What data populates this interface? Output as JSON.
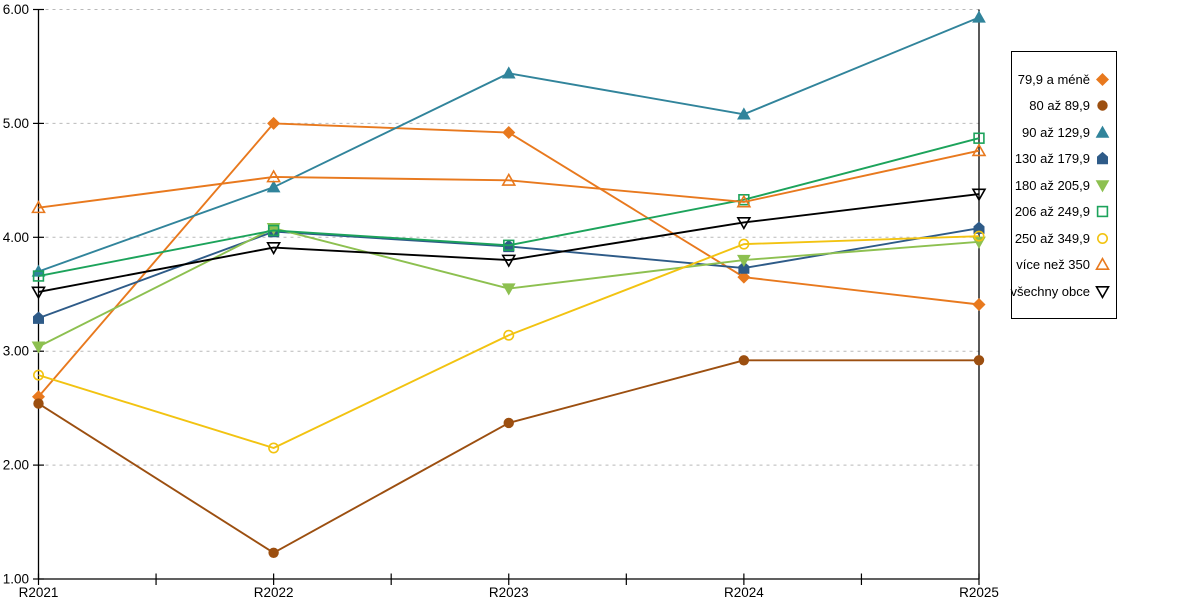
{
  "chart_data": {
    "type": "line",
    "title": "",
    "xlabel": "",
    "ylabel": "",
    "categories": [
      "R2021",
      "R2022",
      "R2023",
      "R2024",
      "R2025"
    ],
    "y_tick_labels": [
      "6.00",
      "5.00",
      "4.00",
      "3.00",
      "2.00",
      "1.00"
    ],
    "ylim": [
      1.0,
      6.0
    ],
    "grid": "horizontal dashed light-gray",
    "legend_position": "right",
    "series": [
      {
        "name": "79,9 a méně",
        "marker": "diamond",
        "fill": "solid",
        "color": "#E8791E",
        "values": [
          2.6,
          5.0,
          4.92,
          3.65,
          3.41
        ]
      },
      {
        "name": "80 až 89,9",
        "marker": "circle",
        "fill": "solid",
        "color": "#9C4F10",
        "values": [
          2.54,
          1.23,
          2.37,
          2.92,
          2.92
        ]
      },
      {
        "name": "90 až 129,9",
        "marker": "triangle-up",
        "fill": "solid",
        "color": "#31849B",
        "values": [
          3.7,
          4.44,
          5.44,
          5.08,
          5.93
        ]
      },
      {
        "name": "130 až 179,9",
        "marker": "pentagon",
        "fill": "solid",
        "color": "#2E5B88",
        "values": [
          3.29,
          4.05,
          3.92,
          3.73,
          4.08
        ]
      },
      {
        "name": "180 až 205,9",
        "marker": "triangle-down",
        "fill": "solid",
        "color": "#8DC050",
        "values": [
          3.04,
          4.08,
          3.55,
          3.8,
          3.96
        ]
      },
      {
        "name": "206 až 249,9",
        "marker": "square",
        "fill": "open",
        "color": "#1CA35B",
        "values": [
          3.66,
          4.06,
          3.93,
          4.33,
          4.87
        ]
      },
      {
        "name": "250 až 349,9",
        "marker": "circle",
        "fill": "open",
        "color": "#F2C311",
        "values": [
          2.79,
          2.15,
          3.14,
          3.94,
          4.01
        ]
      },
      {
        "name": "více než 350",
        "marker": "triangle-up",
        "fill": "open",
        "color": "#E8791E",
        "values": [
          4.26,
          4.53,
          4.5,
          4.31,
          4.76
        ]
      },
      {
        "name": "všechny obce",
        "marker": "triangle-down",
        "fill": "open",
        "color": "#000000",
        "values": [
          3.52,
          3.91,
          3.8,
          4.13,
          4.38
        ]
      }
    ]
  }
}
